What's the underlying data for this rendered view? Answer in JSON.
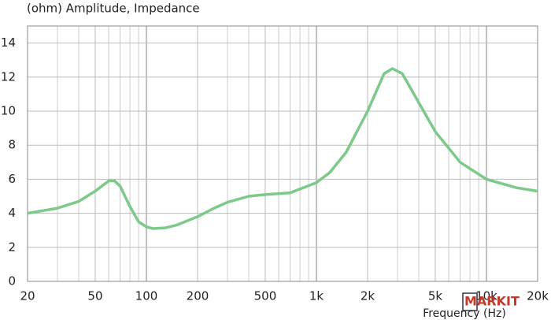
{
  "chart_data": {
    "type": "line",
    "title": "(ohm)  Amplitude, Impedance",
    "x_label": "Frequency (Hz)",
    "watermark": "MARKIT",
    "log_x": true,
    "grid": true,
    "minor_grid": true,
    "x": [
      20,
      30,
      40,
      50,
      60,
      65,
      70,
      80,
      90,
      100,
      110,
      130,
      150,
      200,
      250,
      300,
      400,
      500,
      700,
      1000,
      1200,
      1500,
      2000,
      2500,
      2800,
      3200,
      4000,
      5000,
      7000,
      10000,
      15000,
      20000
    ],
    "series": [
      {
        "name": "Impedance",
        "color": "#7cc98a",
        "values": [
          4.0,
          4.3,
          4.7,
          5.3,
          5.9,
          5.9,
          5.6,
          4.4,
          3.5,
          3.2,
          3.1,
          3.15,
          3.3,
          3.8,
          4.3,
          4.65,
          5.0,
          5.1,
          5.2,
          5.8,
          6.4,
          7.6,
          10.0,
          12.2,
          12.5,
          12.2,
          10.5,
          8.8,
          7.0,
          6.0,
          5.5,
          5.3
        ]
      }
    ],
    "xlim": [
      20,
      20000
    ],
    "xticks": [
      20,
      50,
      100,
      200,
      500,
      {
        "value": 1000,
        "label": "1k"
      },
      {
        "value": 2000,
        "label": "2k"
      },
      {
        "value": 5000,
        "label": "5k"
      },
      {
        "value": 10000,
        "label": "10k"
      },
      {
        "value": 20000,
        "label": "20k"
      }
    ],
    "ylim": [
      0,
      15
    ],
    "yticks": [
      0,
      2,
      4,
      6,
      8,
      10,
      12,
      14
    ]
  }
}
